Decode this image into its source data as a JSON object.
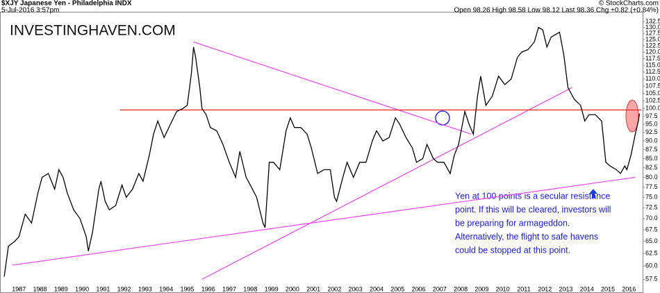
{
  "chart_data": {
    "type": "line",
    "header": {
      "symbol": "$XJY Japanese Yen - Philadelphia INDX",
      "date": "5-Jul-2016 3:57pm",
      "source": "© StockCharts.com",
      "quote": "Open 98.26  High 98.58  Low 98.12  Last 98.36  Chg +0.82 (+0.84%)"
    },
    "watermark": "INVESTINGHAVEN.COM",
    "annotation": [
      "Yen at 100 points is a secular resistance",
      "point. If this will be cleared, investors will",
      "be preparing for armageddon.",
      "Alternatively, the flight to safe havens",
      "could be stopped at this point."
    ],
    "log_scale": true,
    "grid": false,
    "xlim": [
      1986.1,
      2016.65
    ],
    "xticks": [
      1987,
      1988,
      1989,
      1990,
      1991,
      1992,
      1993,
      1994,
      1995,
      1996,
      1997,
      1998,
      1999,
      2000,
      2001,
      2002,
      2003,
      2004,
      2005,
      2006,
      2007,
      2008,
      2009,
      2010,
      2011,
      2012,
      2013,
      2014,
      2015,
      2016
    ],
    "ylim": [
      56,
      134
    ],
    "yticks": [
      57.5,
      {
        "value": 60,
        "label": "60.0"
      },
      62.5,
      {
        "value": 65,
        "label": "65.0"
      },
      67.5,
      {
        "value": 70,
        "label": "70.0"
      },
      72.5,
      {
        "value": 75,
        "label": "75.0"
      },
      77.5,
      {
        "value": 80,
        "label": "80.0"
      },
      82.5,
      {
        "value": 85,
        "label": "85.0"
      },
      87.5,
      {
        "value": 90,
        "label": "90.0"
      },
      92.5,
      {
        "value": 95,
        "label": "95.0"
      },
      97.5,
      {
        "value": 100,
        "label": "100.0"
      },
      102.5,
      {
        "value": 105,
        "label": "105.0"
      },
      107.5,
      {
        "value": 110,
        "label": "110.0"
      },
      112.5,
      {
        "value": 115,
        "label": "115.0"
      },
      117.5,
      {
        "value": 120,
        "label": "120.0"
      },
      122.5,
      {
        "value": 125,
        "label": "125.0"
      },
      127.5,
      {
        "value": 130,
        "label": "130.0"
      },
      132.5
    ],
    "series": [
      {
        "name": "$XJY",
        "color": "#000000",
        "x": [
          1986.3,
          1986.5,
          1986.8,
          1987.0,
          1987.3,
          1987.6,
          1987.9,
          1988.1,
          1988.4,
          1988.7,
          1988.9,
          1989.1,
          1989.3,
          1989.6,
          1989.9,
          1990.2,
          1990.3,
          1990.5,
          1990.8,
          1990.9,
          1991.1,
          1991.3,
          1991.6,
          1991.9,
          1992.1,
          1992.4,
          1992.7,
          1992.9,
          1993.2,
          1993.4,
          1993.6,
          1993.9,
          1994.2,
          1994.5,
          1994.8,
          1995.0,
          1995.2,
          1995.3,
          1995.4,
          1995.6,
          1995.7,
          1995.9,
          1996.1,
          1996.4,
          1996.7,
          1997.0,
          1997.3,
          1997.5,
          1997.8,
          1998.0,
          1998.3,
          1998.6,
          1998.7,
          1998.9,
          1999.1,
          1999.4,
          1999.7,
          1999.9,
          2000.1,
          2000.4,
          2000.7,
          2000.9,
          2001.2,
          2001.5,
          2001.8,
          2002.0,
          2002.1,
          2002.4,
          2002.6,
          2002.9,
          2003.2,
          2003.5,
          2003.8,
          2004.0,
          2004.3,
          2004.6,
          2004.9,
          2005.1,
          2005.4,
          2005.7,
          2005.9,
          2006.2,
          2006.4,
          2006.7,
          2006.9,
          2007.2,
          2007.5,
          2007.7,
          2007.9,
          2008.2,
          2008.4,
          2008.6,
          2008.8,
          2008.95,
          2009.2,
          2009.5,
          2009.8,
          2010.1,
          2010.4,
          2010.7,
          2010.9,
          2011.2,
          2011.5,
          2011.7,
          2011.9,
          2012.1,
          2012.3,
          2012.5,
          2012.7,
          2012.9,
          2013.1,
          2013.4,
          2013.7,
          2013.9,
          2014.1,
          2014.4,
          2014.7,
          2014.9,
          2015.1,
          2015.4,
          2015.6,
          2015.8,
          2015.9,
          2016.1,
          2016.3,
          2016.45,
          2016.5
        ],
        "values": [
          58,
          64,
          65,
          66,
          71,
          69,
          76,
          80,
          81,
          77,
          82,
          80,
          76,
          72,
          70,
          66,
          63,
          67,
          77,
          79,
          74,
          72,
          73,
          78,
          75,
          77,
          81,
          79,
          86,
          92,
          96,
          91,
          95,
          99,
          100,
          101,
          112,
          122,
          118,
          107,
          100,
          98,
          94,
          93,
          89,
          84,
          80,
          87,
          80,
          78,
          75,
          69,
          68,
          84,
          84,
          82,
          93,
          97,
          94,
          94,
          92,
          88,
          81,
          82,
          82,
          75,
          74,
          80,
          84,
          80,
          84,
          84,
          90,
          93,
          90,
          91,
          97,
          95,
          91,
          88,
          84,
          85,
          89,
          85,
          84,
          84,
          81,
          86,
          89,
          99,
          95,
          92,
          104,
          111,
          101,
          104,
          111,
          108,
          110,
          118,
          120,
          121,
          124,
          130,
          129,
          122,
          126,
          127,
          128,
          119,
          107,
          103,
          101,
          96,
          98,
          98,
          96,
          84,
          83,
          82,
          81,
          83,
          82,
          86,
          92,
          96,
          98.36
        ]
      }
    ],
    "trendlines": [
      {
        "color": "#ee44ee",
        "points": [
          [
            1986.7,
            60.2
          ],
          [
            2016.3,
            80
          ]
        ]
      },
      {
        "color": "#ee44ee",
        "points": [
          [
            1995.3,
            124
          ],
          [
            2008.5,
            92
          ]
        ]
      },
      {
        "color": "#ee44ee",
        "points": [
          [
            1995.7,
            57.5
          ],
          [
            2013.3,
            107
          ]
        ]
      },
      {
        "color": "#ee2222",
        "points": [
          [
            1991.8,
            99.5
          ],
          [
            2016.6,
            99.5
          ]
        ]
      }
    ]
  }
}
